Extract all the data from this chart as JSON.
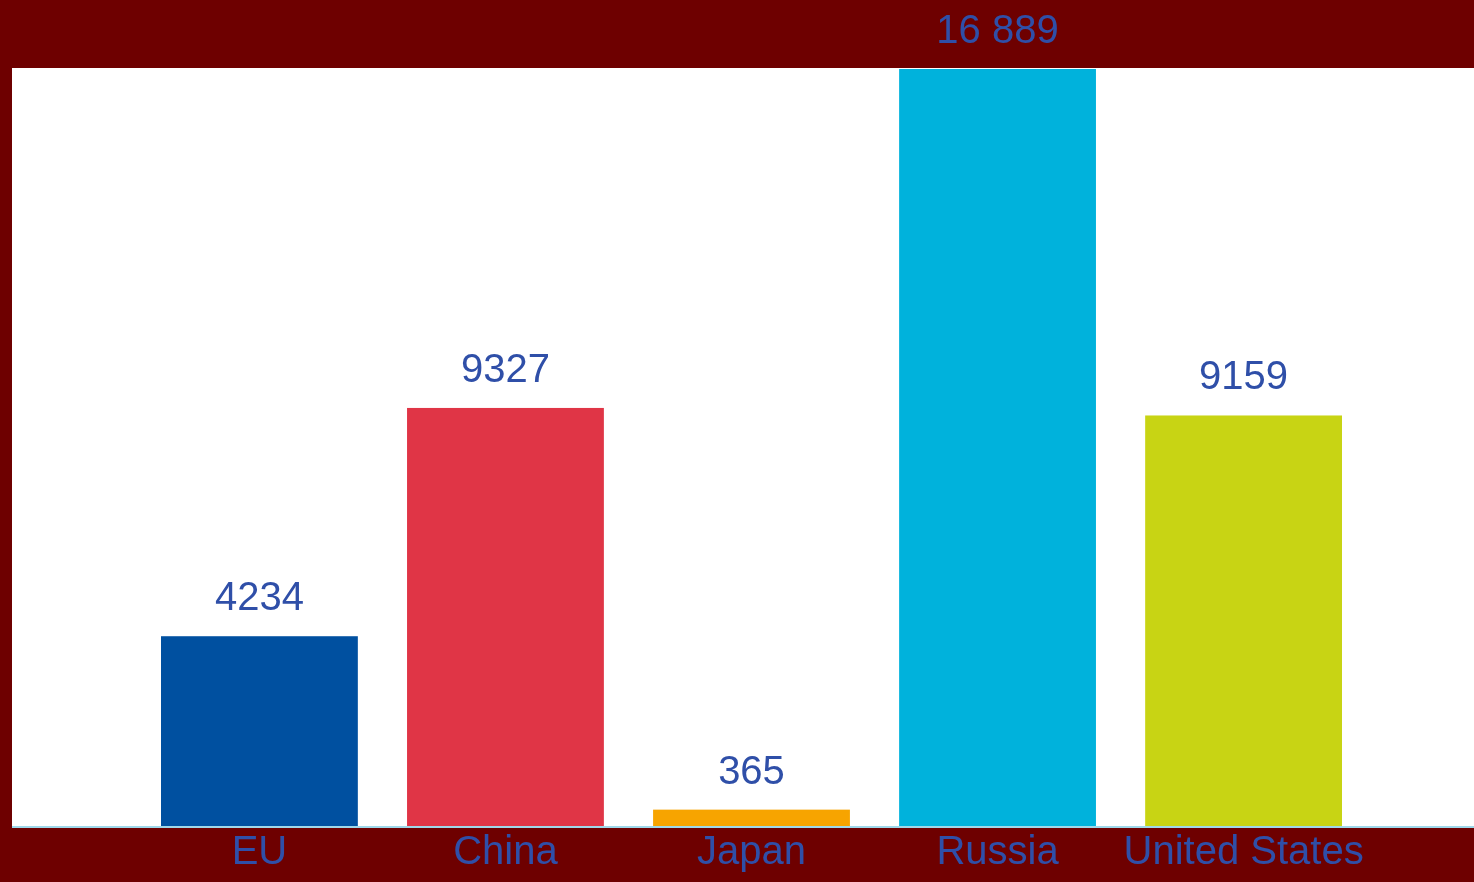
{
  "chart_data": {
    "type": "bar",
    "categories": [
      "EU",
      "China",
      "Japan",
      "Russia",
      "United States"
    ],
    "values": [
      4234,
      9327,
      365,
      16889,
      9159
    ],
    "colors": [
      "#0050a0",
      "#e03546",
      "#f7a400",
      "#00b2dc",
      "#c8d414"
    ],
    "value_labels": [
      "4234",
      "9327",
      "365",
      "16 889",
      "9159"
    ]
  }
}
